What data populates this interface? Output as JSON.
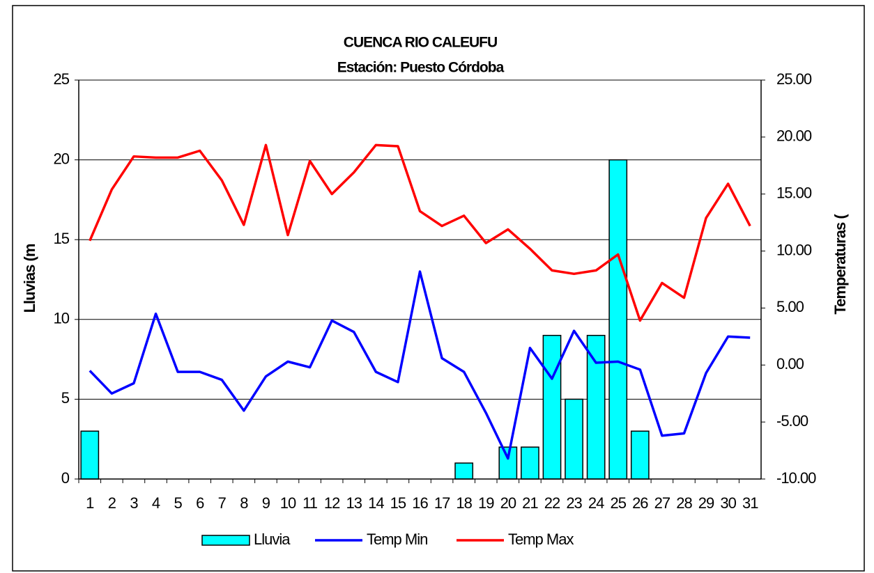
{
  "chart_data": {
    "type": "bar",
    "title": "CUENCA RIO CALEUFU",
    "subtitle": "Estación: Puesto Córdoba",
    "y_label": "Lluvias (m",
    "y2_label": "Temperaturas (",
    "categories": [
      "1",
      "2",
      "3",
      "4",
      "5",
      "6",
      "7",
      "8",
      "9",
      "10",
      "11",
      "12",
      "13",
      "14",
      "15",
      "16",
      "17",
      "18",
      "19",
      "20",
      "21",
      "22",
      "23",
      "24",
      "25",
      "26",
      "27",
      "28",
      "29",
      "30",
      "31"
    ],
    "series": [
      {
        "name": "Lluvia",
        "type": "bar",
        "color": "#00ffff",
        "values": [
          3,
          0,
          0,
          0,
          0,
          0,
          0,
          0,
          0,
          0,
          0,
          0,
          0,
          0,
          0,
          0,
          0,
          1,
          0,
          2,
          2,
          9,
          5,
          9,
          20,
          3,
          0,
          0,
          0,
          0,
          0
        ]
      },
      {
        "name": "Temp Min",
        "type": "line",
        "axis": "y2",
        "color": "#0000ff",
        "values": [
          -0.5,
          -2.5,
          -1.6,
          4.5,
          -0.6,
          -0.6,
          -1.3,
          -4.0,
          -1.0,
          0.3,
          -0.2,
          3.9,
          2.9,
          -0.6,
          -1.5,
          8.2,
          0.6,
          -0.6,
          -4.2,
          -8.2,
          1.5,
          -1.2,
          3.0,
          0.2,
          0.3,
          -0.4,
          -6.2,
          -6.0,
          -0.7,
          2.5,
          2.4
        ]
      },
      {
        "name": "Temp Max",
        "type": "line",
        "axis": "y2",
        "color": "#ff0000",
        "values": [
          10.9,
          15.4,
          18.3,
          18.2,
          18.2,
          18.8,
          16.2,
          12.3,
          19.3,
          11.4,
          17.9,
          15.0,
          16.9,
          19.3,
          19.2,
          13.5,
          12.2,
          13.1,
          10.7,
          11.9,
          10.2,
          8.3,
          8.0,
          8.3,
          9.7,
          3.9,
          7.2,
          5.9,
          12.9,
          15.9,
          12.2
        ]
      }
    ],
    "ylim": [
      0,
      25
    ],
    "yticks": [
      0,
      5,
      10,
      15,
      20,
      25
    ],
    "y2lim": [
      -10,
      25
    ],
    "y2ticks": [
      {
        "value": -10,
        "label": "-10.00"
      },
      {
        "value": -5,
        "label": "-5.00"
      },
      {
        "value": 0,
        "label": "0.00"
      },
      {
        "value": 5,
        "label": "5.00"
      },
      {
        "value": 10,
        "label": "10.00"
      },
      {
        "value": 15,
        "label": "15.00"
      },
      {
        "value": 20,
        "label": "20.00"
      },
      {
        "value": 25,
        "label": "25.00"
      }
    ],
    "grid": true,
    "legend": "bottom"
  }
}
